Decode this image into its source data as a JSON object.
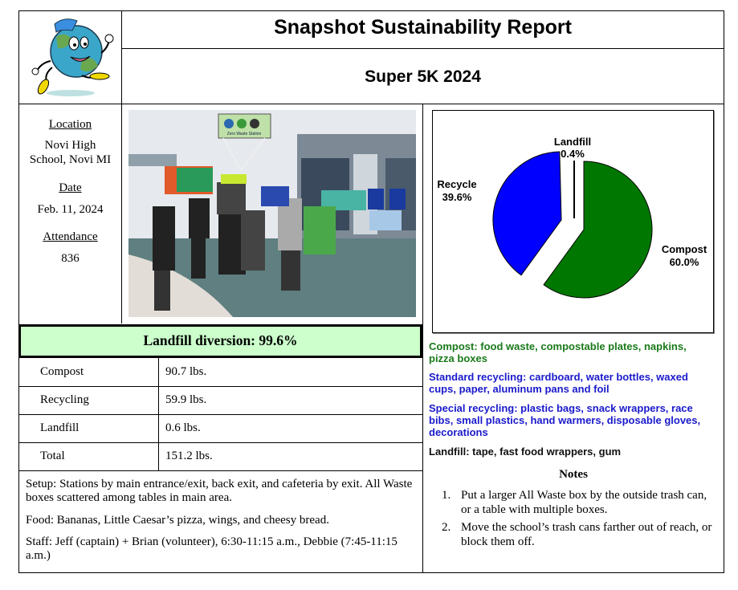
{
  "header": {
    "title": "Snapshot Sustainability Report",
    "subtitle": "Super 5K 2024",
    "logo_icon": "running-earth-mascot-icon"
  },
  "event_info": {
    "location_label": "Location",
    "location_line1": "Novi High",
    "location_line2": "School, Novi MI",
    "date_label": "Date",
    "date_value": "Feb. 11, 2024",
    "attendance_label": "Attendance",
    "attendance_value": "836"
  },
  "photo": {
    "description": "Volunteers and runners at a Zero Waste Station",
    "sign_text": "Zero Waste Station"
  },
  "diversion": {
    "text": "Landfill diversion: 99.6%"
  },
  "weights": {
    "rows": [
      {
        "label": "Compost",
        "value": "90.7 lbs."
      },
      {
        "label": "Recycling",
        "value": "59.9 lbs."
      },
      {
        "label": "Landfill",
        "value": "0.6 lbs."
      },
      {
        "label": "Total",
        "value": "151.2 lbs."
      }
    ]
  },
  "details": {
    "setup": "Setup: Stations by main entrance/exit, back exit, and cafeteria by exit. All Waste boxes scattered among tables in main area.",
    "food": "Food: Bananas, Little Caesar’s pizza, wings, and cheesy bread.",
    "staff": "Staff: Jeff (captain) + Brian (volunteer), 6:30-11:15 a.m., Debbie (7:45-11:15 a.m.)"
  },
  "chart_data": {
    "type": "pie",
    "title": "",
    "slices": [
      {
        "label": "Compost",
        "value": 60.0,
        "display": "60.0%",
        "color": "#007700"
      },
      {
        "label": "Recycle",
        "value": 39.6,
        "display": "39.6%",
        "color": "#0000ff"
      },
      {
        "label": "Landfill",
        "value": 0.4,
        "display": "0.4%",
        "color": "#000000"
      }
    ],
    "legend": "none",
    "labels": "outside"
  },
  "categories": {
    "compost": {
      "text": "Compost: food waste, compostable plates, napkins, pizza boxes",
      "color": "#1a7a1a"
    },
    "standard": {
      "text": "Standard recycling: cardboard, water bottles, waxed cups, paper, aluminum pans and foil",
      "color": "#1a1acc"
    },
    "special": {
      "text": "Special recycling: plastic bags, snack wrappers, race bibs, small plastics, hand warmers, disposable gloves, decorations",
      "color": "#1a1acc"
    },
    "landfill": {
      "text": "Landfill: tape, fast food wrappers, gum",
      "color": "#111111"
    }
  },
  "notes": {
    "heading": "Notes",
    "items": [
      {
        "num": "1.",
        "text": "Put a larger All Waste box by the outside trash can, or a table with multiple boxes."
      },
      {
        "num": "2.",
        "text": "Move the school’s trash cans farther out of reach, or block them off."
      }
    ]
  }
}
